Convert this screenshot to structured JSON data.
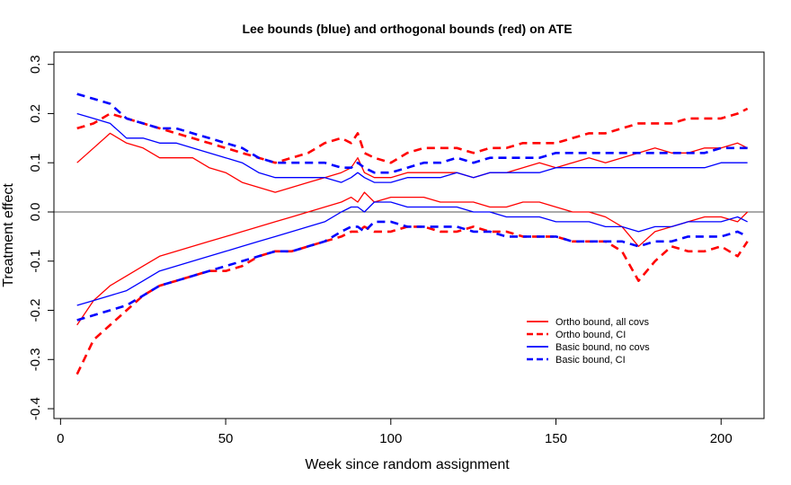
{
  "chart_data": {
    "type": "line",
    "title": "Lee bounds (blue) and orthogonal bounds (red) on ATE",
    "xlabel": "Week since random assignment",
    "ylabel": "Treatment effect",
    "xlim": [
      -2,
      213
    ],
    "ylim": [
      -0.42,
      0.325
    ],
    "xticks": [
      0,
      50,
      100,
      150,
      200
    ],
    "yticks": [
      -0.4,
      -0.3,
      -0.2,
      -0.1,
      0.0,
      0.1,
      0.2,
      0.3
    ],
    "ytick_labels": [
      "-0.4",
      "-0.3",
      "-0.2",
      "-0.1",
      "0.0",
      "0.1",
      "0.2",
      "0.3"
    ],
    "reference_line": 0,
    "grid": false,
    "legend_position": "bottom-right",
    "colors": {
      "ortho": "#ff0000",
      "basic": "#0000ff",
      "reference": "#555555"
    },
    "series": [
      {
        "name": "Ortho bound, all covs",
        "color": "#ff0000",
        "style": "solid",
        "show_in_legend": true,
        "bound": "upper",
        "x": [
          5,
          10,
          15,
          20,
          25,
          30,
          35,
          40,
          45,
          50,
          55,
          60,
          65,
          70,
          75,
          80,
          85,
          88,
          90,
          92,
          95,
          100,
          105,
          110,
          115,
          120,
          125,
          130,
          135,
          140,
          145,
          150,
          155,
          160,
          165,
          170,
          175,
          180,
          185,
          190,
          195,
          200,
          205,
          208
        ],
        "y": [
          0.1,
          0.13,
          0.16,
          0.14,
          0.13,
          0.11,
          0.11,
          0.11,
          0.09,
          0.08,
          0.06,
          0.05,
          0.04,
          0.05,
          0.06,
          0.07,
          0.08,
          0.09,
          0.11,
          0.08,
          0.07,
          0.07,
          0.08,
          0.08,
          0.08,
          0.08,
          0.07,
          0.08,
          0.08,
          0.09,
          0.1,
          0.09,
          0.1,
          0.11,
          0.1,
          0.11,
          0.12,
          0.13,
          0.12,
          0.12,
          0.13,
          0.13,
          0.14,
          0.13
        ]
      },
      {
        "name": "Ortho bound, all covs",
        "color": "#ff0000",
        "style": "solid",
        "show_in_legend": false,
        "bound": "lower",
        "x": [
          5,
          10,
          15,
          20,
          25,
          30,
          35,
          40,
          45,
          50,
          55,
          60,
          65,
          70,
          75,
          80,
          85,
          88,
          90,
          92,
          95,
          100,
          105,
          110,
          115,
          120,
          125,
          130,
          135,
          140,
          145,
          150,
          155,
          160,
          165,
          170,
          175,
          180,
          185,
          190,
          195,
          200,
          205,
          208
        ],
        "y": [
          -0.23,
          -0.18,
          -0.15,
          -0.13,
          -0.11,
          -0.09,
          -0.08,
          -0.07,
          -0.06,
          -0.05,
          -0.04,
          -0.03,
          -0.02,
          -0.01,
          0.0,
          0.01,
          0.02,
          0.03,
          0.02,
          0.04,
          0.02,
          0.03,
          0.03,
          0.03,
          0.02,
          0.02,
          0.02,
          0.01,
          0.01,
          0.02,
          0.02,
          0.01,
          0.0,
          0.0,
          -0.01,
          -0.03,
          -0.07,
          -0.04,
          -0.03,
          -0.02,
          -0.01,
          -0.01,
          -0.02,
          0.0
        ]
      },
      {
        "name": "Ortho bound, CI",
        "color": "#ff0000",
        "style": "dashed",
        "show_in_legend": true,
        "bound": "upper",
        "x": [
          5,
          10,
          15,
          20,
          25,
          30,
          35,
          40,
          45,
          50,
          55,
          60,
          65,
          70,
          75,
          80,
          85,
          88,
          90,
          92,
          95,
          100,
          105,
          110,
          115,
          120,
          125,
          130,
          135,
          140,
          145,
          150,
          155,
          160,
          165,
          170,
          175,
          180,
          185,
          190,
          195,
          200,
          205,
          208
        ],
        "y": [
          0.17,
          0.18,
          0.2,
          0.19,
          0.18,
          0.17,
          0.16,
          0.15,
          0.14,
          0.13,
          0.12,
          0.11,
          0.1,
          0.11,
          0.12,
          0.14,
          0.15,
          0.14,
          0.16,
          0.12,
          0.11,
          0.1,
          0.12,
          0.13,
          0.13,
          0.13,
          0.12,
          0.13,
          0.13,
          0.14,
          0.14,
          0.14,
          0.15,
          0.16,
          0.16,
          0.17,
          0.18,
          0.18,
          0.18,
          0.19,
          0.19,
          0.19,
          0.2,
          0.21
        ]
      },
      {
        "name": "Ortho bound, CI",
        "color": "#ff0000",
        "style": "dashed",
        "show_in_legend": false,
        "bound": "lower",
        "x": [
          5,
          10,
          15,
          20,
          25,
          30,
          35,
          40,
          45,
          50,
          55,
          60,
          65,
          70,
          75,
          80,
          85,
          88,
          90,
          92,
          95,
          100,
          105,
          110,
          115,
          120,
          125,
          130,
          135,
          140,
          145,
          150,
          155,
          160,
          165,
          170,
          175,
          180,
          185,
          190,
          195,
          200,
          205,
          208
        ],
        "y": [
          -0.33,
          -0.26,
          -0.23,
          -0.2,
          -0.17,
          -0.15,
          -0.14,
          -0.13,
          -0.12,
          -0.12,
          -0.11,
          -0.09,
          -0.08,
          -0.08,
          -0.07,
          -0.06,
          -0.05,
          -0.04,
          -0.04,
          -0.03,
          -0.04,
          -0.04,
          -0.03,
          -0.03,
          -0.04,
          -0.04,
          -0.03,
          -0.04,
          -0.04,
          -0.05,
          -0.05,
          -0.05,
          -0.06,
          -0.06,
          -0.06,
          -0.08,
          -0.14,
          -0.1,
          -0.07,
          -0.08,
          -0.08,
          -0.07,
          -0.09,
          -0.06
        ]
      },
      {
        "name": "Basic bound, no covs",
        "color": "#0000ff",
        "style": "solid",
        "show_in_legend": true,
        "bound": "upper",
        "x": [
          5,
          10,
          15,
          20,
          25,
          30,
          35,
          40,
          45,
          50,
          55,
          60,
          65,
          70,
          75,
          80,
          85,
          88,
          90,
          92,
          95,
          100,
          105,
          110,
          115,
          120,
          125,
          130,
          135,
          140,
          145,
          150,
          155,
          160,
          165,
          170,
          175,
          180,
          185,
          190,
          195,
          200,
          205,
          208
        ],
        "y": [
          0.2,
          0.19,
          0.18,
          0.15,
          0.15,
          0.14,
          0.14,
          0.13,
          0.12,
          0.11,
          0.1,
          0.08,
          0.07,
          0.07,
          0.07,
          0.07,
          0.06,
          0.07,
          0.08,
          0.07,
          0.06,
          0.06,
          0.07,
          0.07,
          0.07,
          0.08,
          0.07,
          0.08,
          0.08,
          0.08,
          0.08,
          0.09,
          0.09,
          0.09,
          0.09,
          0.09,
          0.09,
          0.09,
          0.09,
          0.09,
          0.09,
          0.1,
          0.1,
          0.1
        ]
      },
      {
        "name": "Basic bound, no covs",
        "color": "#0000ff",
        "style": "solid",
        "show_in_legend": false,
        "bound": "lower",
        "x": [
          5,
          10,
          15,
          20,
          25,
          30,
          35,
          40,
          45,
          50,
          55,
          60,
          65,
          70,
          75,
          80,
          85,
          88,
          90,
          92,
          95,
          100,
          105,
          110,
          115,
          120,
          125,
          130,
          135,
          140,
          145,
          150,
          155,
          160,
          165,
          170,
          175,
          180,
          185,
          190,
          195,
          200,
          205,
          208
        ],
        "y": [
          -0.19,
          -0.18,
          -0.17,
          -0.16,
          -0.14,
          -0.12,
          -0.11,
          -0.1,
          -0.09,
          -0.08,
          -0.07,
          -0.06,
          -0.05,
          -0.04,
          -0.03,
          -0.02,
          0.0,
          0.01,
          0.01,
          0.0,
          0.02,
          0.02,
          0.01,
          0.01,
          0.01,
          0.01,
          0.0,
          0.0,
          -0.01,
          -0.01,
          -0.01,
          -0.02,
          -0.02,
          -0.02,
          -0.03,
          -0.03,
          -0.04,
          -0.03,
          -0.03,
          -0.02,
          -0.02,
          -0.02,
          -0.01,
          -0.02
        ]
      },
      {
        "name": "Basic bound, CI",
        "color": "#0000ff",
        "style": "dashed",
        "show_in_legend": true,
        "bound": "upper",
        "x": [
          5,
          10,
          15,
          20,
          25,
          30,
          35,
          40,
          45,
          50,
          55,
          60,
          65,
          70,
          75,
          80,
          85,
          88,
          90,
          92,
          95,
          100,
          105,
          110,
          115,
          120,
          125,
          130,
          135,
          140,
          145,
          150,
          155,
          160,
          165,
          170,
          175,
          180,
          185,
          190,
          195,
          200,
          205,
          208
        ],
        "y": [
          0.24,
          0.23,
          0.22,
          0.19,
          0.18,
          0.17,
          0.17,
          0.16,
          0.15,
          0.14,
          0.13,
          0.11,
          0.1,
          0.1,
          0.1,
          0.1,
          0.09,
          0.09,
          0.1,
          0.09,
          0.08,
          0.08,
          0.09,
          0.1,
          0.1,
          0.11,
          0.1,
          0.11,
          0.11,
          0.11,
          0.11,
          0.12,
          0.12,
          0.12,
          0.12,
          0.12,
          0.12,
          0.12,
          0.12,
          0.12,
          0.12,
          0.13,
          0.13,
          0.13
        ]
      },
      {
        "name": "Basic bound, CI",
        "color": "#0000ff",
        "style": "dashed",
        "show_in_legend": false,
        "bound": "lower",
        "x": [
          5,
          10,
          15,
          20,
          25,
          30,
          35,
          40,
          45,
          50,
          55,
          60,
          65,
          70,
          75,
          80,
          85,
          88,
          90,
          92,
          95,
          100,
          105,
          110,
          115,
          120,
          125,
          130,
          135,
          140,
          145,
          150,
          155,
          160,
          165,
          170,
          175,
          180,
          185,
          190,
          195,
          200,
          205,
          208
        ],
        "y": [
          -0.22,
          -0.21,
          -0.2,
          -0.19,
          -0.17,
          -0.15,
          -0.14,
          -0.13,
          -0.12,
          -0.11,
          -0.1,
          -0.09,
          -0.08,
          -0.08,
          -0.07,
          -0.06,
          -0.04,
          -0.03,
          -0.03,
          -0.04,
          -0.02,
          -0.02,
          -0.03,
          -0.03,
          -0.03,
          -0.03,
          -0.04,
          -0.04,
          -0.05,
          -0.05,
          -0.05,
          -0.05,
          -0.06,
          -0.06,
          -0.06,
          -0.06,
          -0.07,
          -0.06,
          -0.06,
          -0.05,
          -0.05,
          -0.05,
          -0.04,
          -0.05
        ]
      }
    ]
  }
}
